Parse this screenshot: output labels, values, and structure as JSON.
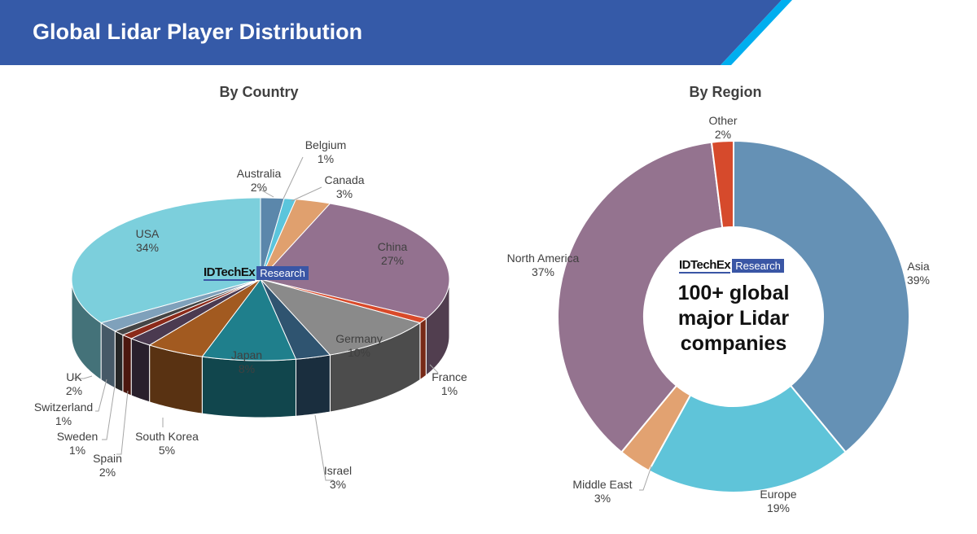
{
  "header": {
    "title": "Global Lidar Player Distribution",
    "bar_color": "#355aa8",
    "accent_color": "#00aeef"
  },
  "chart_data": [
    {
      "type": "pie",
      "subtitle": "By Country",
      "style": "3d",
      "categories": [
        "Australia",
        "Belgium",
        "Canada",
        "China",
        "France",
        "Germany",
        "Israel",
        "Japan",
        "South Korea",
        "Spain",
        "Sweden",
        "Switzerland",
        "UK",
        "USA"
      ],
      "values": [
        2,
        1,
        3,
        27,
        1,
        10,
        3,
        8,
        5,
        2,
        1,
        1,
        2,
        34
      ],
      "labels": [
        "2%",
        "1%",
        "3%",
        "27%",
        "1%",
        "10%",
        "3%",
        "8%",
        "5%",
        "2%",
        "1%",
        "1%",
        "2%",
        "34%"
      ],
      "colors": [
        "#5b87ab",
        "#5bc5dc",
        "#e0a06e",
        "#93718f",
        "#d94a2a",
        "#8a8a8a",
        "#2f5470",
        "#1f7f8c",
        "#a25a20",
        "#4b3a50",
        "#8b2a1a",
        "#454545",
        "#7fa1bb",
        "#7ccfdc"
      ]
    },
    {
      "type": "donut",
      "subtitle": "By Region",
      "categories": [
        "Asia",
        "Europe",
        "Middle East",
        "North America",
        "Other"
      ],
      "values": [
        39,
        19,
        3,
        37,
        2
      ],
      "labels": [
        "39%",
        "19%",
        "3%",
        "37%",
        "2%"
      ],
      "colors": [
        "#6591b5",
        "#5fc4d9",
        "#e2a271",
        "#94738f",
        "#d64a2c"
      ],
      "center_text": [
        "100+ global",
        "major Lidar",
        "companies"
      ]
    }
  ],
  "logo": {
    "name": "IDTechEx",
    "tag": "Research"
  }
}
